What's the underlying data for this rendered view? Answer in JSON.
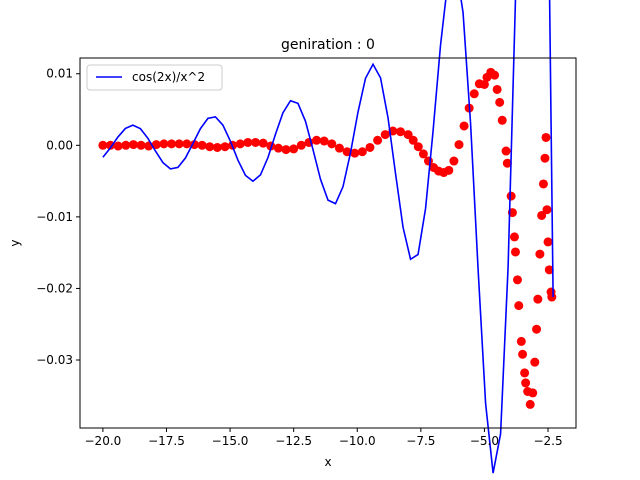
{
  "chart_data": {
    "type": "line",
    "title": "geniration : 0",
    "xlabel": "x",
    "ylabel": "y",
    "xlim": [
      -20.9,
      -1.4
    ],
    "ylim": [
      -0.0395,
      0.0122
    ],
    "xticks": [
      -20.0,
      -17.5,
      -15.0,
      -12.5,
      -10.0,
      -7.5,
      -5.0,
      -2.5
    ],
    "xtick_labels": [
      "−20.0",
      "−17.5",
      "−15.0",
      "−12.5",
      "−10.0",
      "−7.5",
      "−5.0",
      "−2.5"
    ],
    "yticks": [
      0.01,
      0.0,
      -0.01,
      -0.02,
      -0.03
    ],
    "ytick_labels": [
      "0.01",
      "0.00",
      "−0.01",
      "−0.02",
      "−0.03"
    ],
    "grid": false,
    "legend_position": "top-left",
    "series": [
      {
        "name": "cos(2x)/x^2",
        "kind": "line",
        "color": "#0000ff",
        "function": "cos(2x)/x^2",
        "x_range": [
          -20.0,
          -2.3
        ]
      },
      {
        "name": "",
        "kind": "scatter",
        "color": "#ff0000",
        "x": [
          -20.0,
          -19.7,
          -19.4,
          -19.1,
          -18.8,
          -18.5,
          -18.2,
          -17.9,
          -17.6,
          -17.3,
          -17.0,
          -16.7,
          -16.4,
          -16.1,
          -15.8,
          -15.5,
          -15.2,
          -14.9,
          -14.6,
          -14.3,
          -14.0,
          -13.7,
          -13.4,
          -13.1,
          -12.8,
          -12.5,
          -12.2,
          -11.9,
          -11.6,
          -11.3,
          -11.0,
          -10.7,
          -10.4,
          -10.1,
          -9.8,
          -9.5,
          -9.2,
          -8.9,
          -8.6,
          -8.3,
          -8.0,
          -7.8,
          -7.6,
          -7.4,
          -7.2,
          -7.0,
          -6.8,
          -6.6,
          -6.4,
          -6.2,
          -6.0,
          -5.8,
          -5.6,
          -5.4,
          -5.2,
          -5.0,
          -4.9,
          -4.75,
          -4.6,
          -4.5,
          -4.4,
          -4.3,
          -4.15,
          -4.1,
          -3.95,
          -3.9,
          -3.82,
          -3.78,
          -3.7,
          -3.65,
          -3.55,
          -3.5,
          -3.42,
          -3.38,
          -3.3,
          -3.2,
          -3.1,
          -3.02,
          -2.95,
          -2.9,
          -2.82,
          -2.75,
          -2.68,
          -2.62,
          -2.58,
          -2.54,
          -2.5,
          -2.45,
          -2.38,
          -2.35
        ],
        "y": [
          0.0,
          0.0,
          -0.0001,
          0.0,
          0.0001,
          0.0,
          -0.0001,
          0.0001,
          0.0002,
          0.0002,
          0.0002,
          0.0002,
          0.0001,
          0.0,
          -0.0002,
          -0.0003,
          -0.0002,
          0.0,
          0.0002,
          0.0004,
          0.0004,
          0.0003,
          -0.0001,
          -0.0004,
          -0.0006,
          -0.0005,
          0.0,
          0.0004,
          0.0007,
          0.0006,
          0.0002,
          -0.0004,
          -0.0009,
          -0.0011,
          -0.0009,
          -0.0003,
          0.0007,
          0.0015,
          0.002,
          0.0019,
          0.0015,
          0.0007,
          -0.0002,
          -0.0012,
          -0.0022,
          -0.0031,
          -0.0036,
          -0.0038,
          -0.0035,
          -0.0022,
          0.0001,
          0.0027,
          0.0052,
          0.0072,
          0.0086,
          0.0085,
          0.0095,
          0.0102,
          0.0098,
          0.0078,
          0.006,
          0.0035,
          -0.0008,
          -0.0025,
          -0.0071,
          -0.0094,
          -0.0128,
          -0.0149,
          -0.0188,
          -0.0224,
          -0.0274,
          -0.0292,
          -0.0318,
          -0.0332,
          -0.0344,
          -0.0362,
          -0.0346,
          -0.0303,
          -0.0257,
          -0.0215,
          -0.0152,
          -0.0098,
          -0.0054,
          -0.0018,
          0.0011,
          -0.009,
          -0.0135,
          -0.0174,
          -0.0205,
          -0.0212
        ]
      }
    ]
  }
}
